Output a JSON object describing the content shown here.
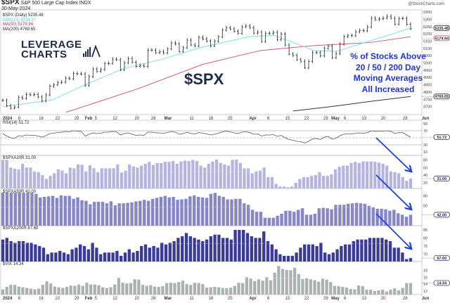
{
  "header": {
    "symbol": "$SPX",
    "name": "S&P 500 Large Cap Index",
    "exchange": "INDX",
    "date": "30-May-2024",
    "watermark": "@StockCharts.com"
  },
  "legend": {
    "price": "$SPX (Daily) 5235.48",
    "ema": "EMA(21) 5239.37",
    "ma50": "MA(50) 5179.94",
    "ma200": "MA(200) 4769.65",
    "rsi": "RSI(14) 51.72",
    "a20": "$SPXA20R 31.00",
    "a50": "$SPXA50R 42.00",
    "a200": "$SPXA200R 67.60",
    "vix": "$VIX 14.34"
  },
  "annotations": {
    "logo_line1": "LEVERAGE",
    "logo_line2": "CHARTS",
    "ticker": "$SPX",
    "note": [
      "% of Stocks Above",
      "20 / 50 / 200 Day",
      "Moving Averages",
      "All Increased"
    ],
    "arrow_color": "#1f3fd6"
  },
  "colors": {
    "ema": "#7fe0e8",
    "ma50": "#d45a78",
    "ma200": "#333333",
    "a20": "#b4b4de",
    "a50": "#8787c6",
    "a200": "#3a3a98",
    "vix": "#a9b1b3",
    "rsi": "#555555"
  },
  "chart_data": [
    {
      "type": "ohlc-bar",
      "title": "$SPX (Daily)",
      "date_range": [
        "2024-01-02",
        "2024-05-30"
      ],
      "ylim": [
        4645,
        5365
      ],
      "y_ticks": [
        5350,
        5300,
        5250,
        5200,
        5150,
        5100,
        5050,
        5000,
        4950,
        4900,
        4850,
        4800,
        4750,
        4700
      ],
      "badges": [
        {
          "value": "5235.48",
          "color": "#333"
        },
        {
          "value": "5179.94",
          "color": "#d45a78"
        },
        {
          "value": "4769.65",
          "color": "#333"
        }
      ],
      "close": [
        4742,
        4705,
        4689,
        4697,
        4764,
        4756,
        4783,
        4780,
        4783,
        4766,
        4739,
        4780,
        4840,
        4850,
        4864,
        4868,
        4895,
        4891,
        4928,
        4925,
        4924,
        4845,
        4906,
        4958,
        4942,
        4954,
        4995,
        4997,
        5026,
        5022,
        4953,
        5001,
        5030,
        5005,
        4976,
        4982,
        4975,
        5087,
        5088,
        5070,
        5078,
        5069,
        5096,
        5137,
        5130,
        5079,
        5104,
        5157,
        5124,
        5117,
        5175,
        5165,
        5150,
        5117,
        5149,
        5179,
        5225,
        5241,
        5234,
        5218,
        5203,
        5248,
        5254,
        5243,
        5205,
        5211,
        5147,
        5204,
        5202,
        5210,
        5160,
        5199,
        5123,
        5061,
        5051,
        5022,
        5011,
        4967,
        5010,
        5070,
        5071,
        5048,
        5100,
        5116,
        5036,
        5064,
        5128,
        5181,
        5188,
        5187,
        5214,
        5223,
        5221,
        5247,
        5308,
        5297,
        5303,
        5308,
        5321,
        5307,
        5267,
        5305,
        5306,
        5266,
        5235
      ],
      "ema21": [
        [
          "2024-01-02",
          4700
        ],
        [
          "2024-01-20",
          4745
        ],
        [
          "2024-02-01",
          4850
        ],
        [
          "2024-02-15",
          4960
        ],
        [
          "2024-03-01",
          5030
        ],
        [
          "2024-03-15",
          5110
        ],
        [
          "2024-04-01",
          5180
        ],
        [
          "2024-04-10",
          5190
        ],
        [
          "2024-04-25",
          5085
        ],
        [
          "2024-05-03",
          5080
        ],
        [
          "2024-05-15",
          5150
        ],
        [
          "2024-05-30",
          5239.37
        ]
      ],
      "ma50": [
        [
          "2024-01-25",
          4660
        ],
        [
          "2024-02-20",
          4820
        ],
        [
          "2024-03-15",
          4990
        ],
        [
          "2024-04-05",
          5085
        ],
        [
          "2024-04-25",
          5120
        ],
        [
          "2024-05-15",
          5140
        ],
        [
          "2024-05-30",
          5179.94
        ]
      ],
      "ma200": [
        [
          "2024-04-17",
          4670
        ],
        [
          "2024-05-01",
          4700
        ],
        [
          "2024-05-15",
          4735
        ],
        [
          "2024-05-30",
          4769.65
        ]
      ]
    },
    {
      "type": "line",
      "title": "RSI(14)",
      "ylim": [
        0,
        100
      ],
      "y_ticks": [
        90,
        70,
        30,
        10
      ],
      "badge": "51.72",
      "levels": [
        70,
        50,
        30
      ],
      "values": [
        62,
        55,
        50,
        48,
        56,
        55,
        58,
        57,
        57,
        55,
        52,
        56,
        62,
        63,
        65,
        66,
        68,
        67,
        70,
        69,
        68,
        55,
        60,
        64,
        62,
        63,
        66,
        66,
        68,
        67,
        58,
        62,
        64,
        60,
        57,
        58,
        57,
        66,
        66,
        64,
        64,
        63,
        65,
        68,
        66,
        60,
        62,
        66,
        62,
        61,
        65,
        63,
        61,
        58,
        60,
        63,
        67,
        69,
        67,
        64,
        62,
        66,
        67,
        65,
        60,
        61,
        55,
        58,
        58,
        59,
        54,
        57,
        50,
        45,
        43,
        40,
        39,
        35,
        40,
        47,
        48,
        45,
        52,
        54,
        46,
        49,
        56,
        60,
        61,
        61,
        63,
        64,
        63,
        65,
        70,
        68,
        69,
        69,
        70,
        68,
        62,
        65,
        65,
        58,
        51.72
      ]
    },
    {
      "type": "bar",
      "title": "$SPXA20R",
      "ylim": [
        5,
        92
      ],
      "y_ticks": [
        80,
        60,
        40,
        20
      ],
      "badge": "31.00",
      "values": [
        80,
        80,
        60,
        57,
        55,
        70,
        60,
        60,
        50,
        48,
        40,
        30,
        38,
        45,
        55,
        52,
        45,
        60,
        58,
        68,
        67,
        50,
        66,
        58,
        48,
        58,
        58,
        58,
        58,
        68,
        47,
        52,
        68,
        63,
        60,
        65,
        70,
        75,
        67,
        72,
        72,
        75,
        75,
        77,
        70,
        76,
        78,
        77,
        80,
        77,
        65,
        60,
        70,
        76,
        82,
        72,
        68,
        65,
        80,
        83,
        72,
        58,
        58,
        45,
        50,
        52,
        60,
        35,
        35,
        17,
        10,
        10,
        8,
        10,
        20,
        30,
        35,
        35,
        38,
        40,
        48,
        38,
        38,
        42,
        55,
        62,
        65,
        65,
        72,
        75,
        72,
        76,
        76,
        76,
        75,
        73,
        70,
        65,
        50,
        48,
        45,
        35,
        25,
        31
      ]
    },
    {
      "type": "bar",
      "title": "$SPXA50R",
      "ylim": [
        20,
        95
      ],
      "y_ticks": [
        80,
        60
      ],
      "badge": "42.00",
      "values": [
        90,
        90,
        90,
        90,
        90,
        89,
        88,
        88,
        84,
        77,
        78,
        79,
        80,
        76,
        81,
        80,
        80,
        74,
        77,
        71,
        70,
        63,
        68,
        68,
        68,
        65,
        69,
        61,
        65,
        65,
        66,
        67,
        69,
        70,
        72,
        70,
        74,
        76,
        78,
        80,
        77,
        78,
        72,
        73,
        74,
        79,
        81,
        78,
        77,
        76,
        84,
        86,
        80,
        78,
        73,
        73,
        74,
        74,
        65,
        62,
        52,
        48,
        48,
        36,
        36,
        36,
        40,
        44,
        50,
        50,
        48,
        52,
        55,
        42,
        42,
        44,
        55,
        56,
        55,
        53,
        62,
        62,
        62,
        64,
        65,
        66,
        65,
        64,
        60,
        57,
        54,
        54,
        53,
        50,
        52,
        45,
        42,
        38,
        42
      ]
    },
    {
      "type": "bar",
      "title": "$SPXA200R",
      "ylim": [
        65.5,
        87.5
      ],
      "y_ticks": [
        85,
        80,
        75,
        70
      ],
      "badge": "67.60",
      "values": [
        79,
        80,
        78,
        77,
        78,
        78,
        77,
        77,
        76,
        75,
        74,
        70,
        71,
        71,
        72,
        71,
        70,
        73,
        74,
        76,
        75,
        73,
        77,
        74,
        70,
        71,
        71,
        71,
        72,
        69,
        71,
        73,
        71,
        72,
        75,
        76,
        74,
        75,
        74,
        77,
        76,
        77,
        78,
        80,
        81,
        83,
        81,
        80,
        79,
        78,
        79,
        81,
        82,
        82,
        80,
        80,
        79,
        86,
        86,
        85,
        83,
        81,
        80,
        80,
        84,
        78,
        76,
        73,
        70,
        69,
        69,
        69,
        71,
        74,
        76,
        76,
        76,
        75,
        77,
        71,
        70,
        71,
        73,
        75,
        76,
        76,
        78,
        79,
        79,
        79,
        80,
        80,
        80,
        80,
        79,
        78,
        74,
        74,
        71,
        67,
        67.6
      ]
    },
    {
      "type": "bar",
      "title": "$VIX",
      "ylim": [
        11,
        20.5
      ],
      "y_ticks": [
        18,
        16,
        14,
        12
      ],
      "badge": "14.34",
      "values": [
        12.5,
        13.2,
        13.8,
        13.8,
        13.3,
        13.1,
        12.9,
        12.7,
        12.5,
        12.7,
        13.8,
        14.8,
        14.2,
        13.3,
        13.1,
        12.9,
        13.2,
        13.6,
        13.5,
        13.9,
        13.5,
        14.4,
        13.9,
        13.9,
        13.7,
        13.1,
        12.9,
        13.1,
        13.9,
        15.8,
        14.4,
        14.2,
        14.3,
        15.4,
        15.3,
        13.8,
        13.5,
        13.7,
        13.3,
        13.2,
        13.4,
        14.3,
        14.4,
        14.3,
        14.6,
        15.0,
        14.0,
        13.8,
        14.4,
        14.3,
        14.0,
        13.0,
        13.1,
        13.2,
        13.1,
        12.9,
        12.8,
        13.0,
        13.5,
        14.4,
        14.3,
        16.0,
        15.6,
        14.9,
        15.4,
        15.0,
        16.0,
        15.1,
        17.3,
        19.2,
        18.4,
        18.1,
        18.0,
        18.7,
        16.9,
        15.5,
        15.7,
        15.4,
        15.1,
        14.7,
        15.6,
        15.3,
        14.6,
        13.5,
        13.4,
        13.2,
        13.0,
        12.6,
        12.5,
        13.6,
        13.4,
        12.4,
        12.4,
        12.0,
        12.2,
        12.4,
        11.9,
        12.4,
        12.8,
        12.2,
        12.9,
        14.3,
        14.3
      ]
    }
  ],
  "x_ticks": [
    {
      "label": "2024",
      "date": "2024-01-02",
      "bold": true
    },
    {
      "label": "8",
      "date": "2024-01-08"
    },
    {
      "label": "16",
      "date": "2024-01-16"
    },
    {
      "label": "22",
      "date": "2024-01-22"
    },
    {
      "label": "29",
      "date": "2024-01-29"
    },
    {
      "label": "Feb",
      "date": "2024-02-01",
      "bold": true
    },
    {
      "label": "5",
      "date": "2024-02-05"
    },
    {
      "label": "12",
      "date": "2024-02-12"
    },
    {
      "label": "20",
      "date": "2024-02-20"
    },
    {
      "label": "26",
      "date": "2024-02-26"
    },
    {
      "label": "Mar",
      "date": "2024-03-01",
      "bold": true
    },
    {
      "label": "11",
      "date": "2024-03-11"
    },
    {
      "label": "18",
      "date": "2024-03-18"
    },
    {
      "label": "25",
      "date": "2024-03-25"
    },
    {
      "label": "Apr",
      "date": "2024-04-01",
      "bold": true
    },
    {
      "label": "8",
      "date": "2024-04-08"
    },
    {
      "label": "15",
      "date": "2024-04-15"
    },
    {
      "label": "22",
      "date": "2024-04-22"
    },
    {
      "label": "29",
      "date": "2024-04-29"
    },
    {
      "label": "May",
      "date": "2024-05-01",
      "bold": true
    },
    {
      "label": "6",
      "date": "2024-05-06"
    },
    {
      "label": "13",
      "date": "2024-05-13"
    },
    {
      "label": "20",
      "date": "2024-05-20"
    },
    {
      "label": "28",
      "date": "2024-05-28"
    },
    {
      "label": "Jun",
      "date": "2024-06-03",
      "bold": true
    }
  ]
}
